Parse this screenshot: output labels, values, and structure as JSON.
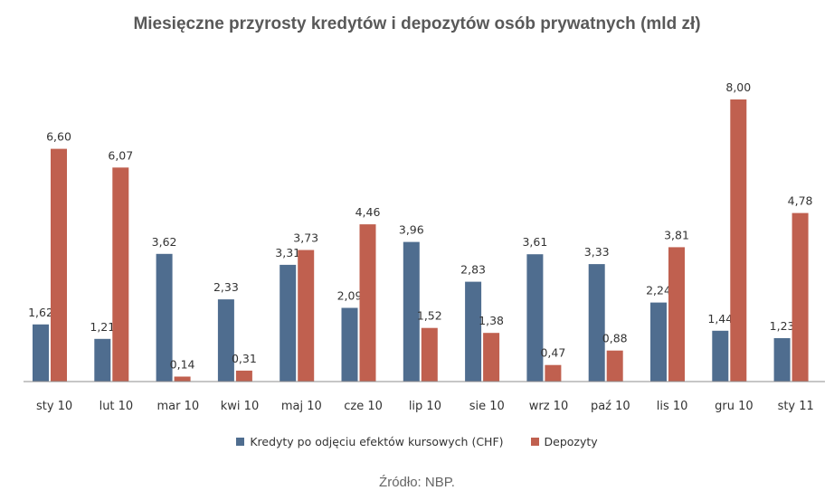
{
  "chart_data": {
    "type": "bar",
    "title": "Miesięczne przyrosty kredytów i depozytów osób prywatnych (mld zł)",
    "categories": [
      "sty 10",
      "lut 10",
      "mar 10",
      "kwi 10",
      "maj 10",
      "cze 10",
      "lip 10",
      "sie 10",
      "wrz 10",
      "paź 10",
      "lis 10",
      "gru 10",
      "sty 11"
    ],
    "series": [
      {
        "name": "Kredyty po odjęciu efektów kursowych (CHF)",
        "color": "#4f6d8f",
        "values": [
          1.62,
          1.21,
          3.62,
          2.33,
          3.31,
          2.09,
          3.96,
          2.83,
          3.61,
          3.33,
          2.24,
          1.44,
          1.23
        ],
        "labels": [
          "1,62",
          "1,21",
          "3,62",
          "2,33",
          "3,31",
          "2,09",
          "3,96",
          "2,83",
          "3,61",
          "3,33",
          "2,24",
          "1,44",
          "1,23"
        ]
      },
      {
        "name": "Depozyty",
        "color": "#c0604f",
        "values": [
          6.6,
          6.07,
          0.14,
          0.31,
          3.73,
          4.46,
          1.52,
          1.38,
          0.47,
          0.88,
          3.81,
          8.0,
          4.78
        ],
        "labels": [
          "6,60",
          "6,07",
          "0,14",
          "0,31",
          "3,73",
          "4,46",
          "1,52",
          "1,38",
          "0,47",
          "0,88",
          "3,81",
          "8,00",
          "4,78"
        ]
      }
    ],
    "ylim": [
      0,
      8
    ],
    "grid": false,
    "legend_position": "bottom"
  },
  "source": "Źródło: NBP."
}
